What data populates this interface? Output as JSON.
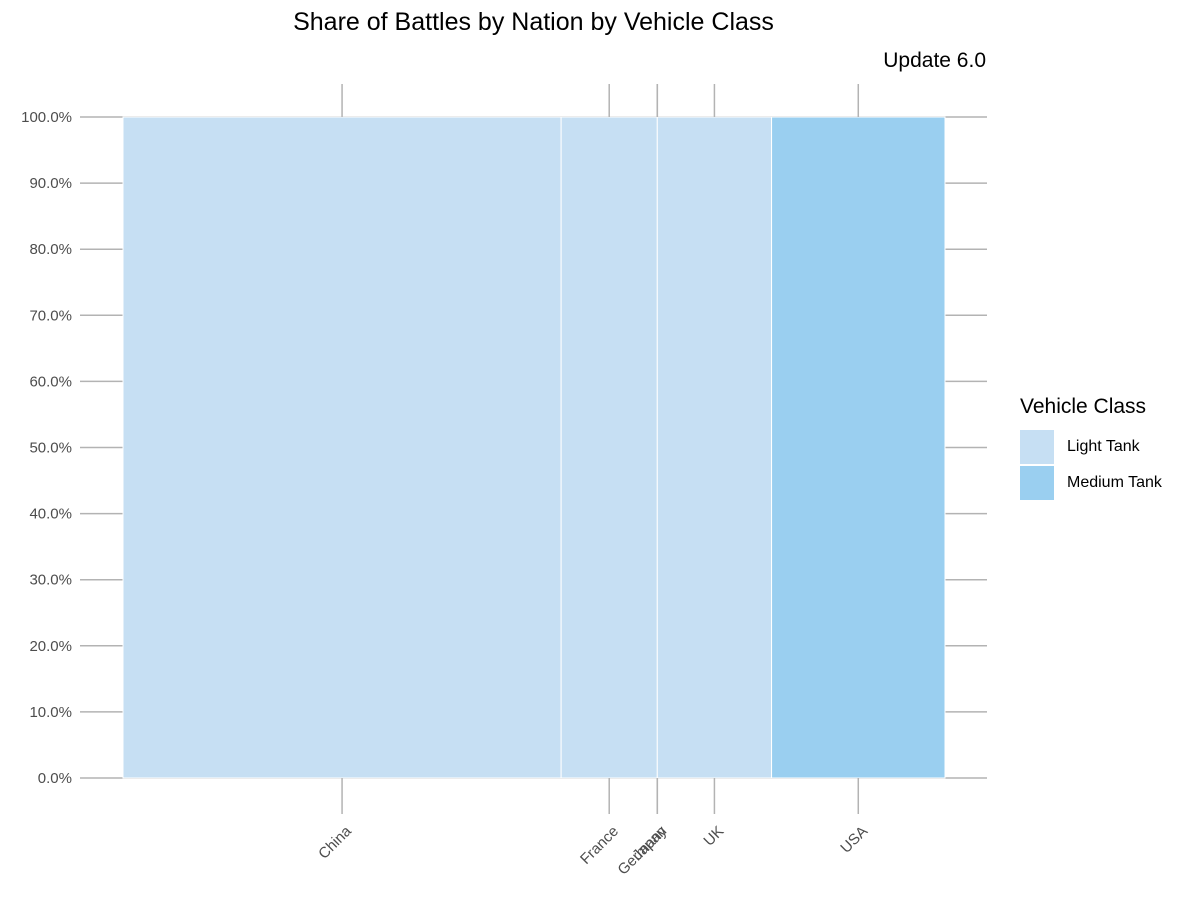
{
  "chart_data": {
    "type": "bar",
    "title": "Share of Battles by Nation by Vehicle Class",
    "subtitle": "Update 6.0",
    "xlabel": "",
    "ylabel": "",
    "categories": [
      "China",
      "France",
      "Germany",
      "Japan",
      "UK",
      "USA"
    ],
    "widths": [
      0.533,
      0.117,
      0.0,
      0.0,
      0.139,
      0.211
    ],
    "series": [
      {
        "name": "Light Tank",
        "color": "#C6DFF3",
        "values": [
          1.0,
          1.0,
          1.0,
          1.0,
          1.0,
          0.0
        ]
      },
      {
        "name": "Medium Tank",
        "color": "#9ACFF0",
        "values": [
          0.0,
          0.0,
          0.0,
          0.0,
          0.0,
          1.0
        ]
      }
    ],
    "yticks": [
      "0.0%",
      "10.0%",
      "20.0%",
      "30.0%",
      "40.0%",
      "50.0%",
      "60.0%",
      "70.0%",
      "80.0%",
      "90.0%",
      "100.0%"
    ],
    "ylim": [
      0,
      1
    ],
    "legend_title": "Vehicle Class",
    "legend_position": "right"
  }
}
